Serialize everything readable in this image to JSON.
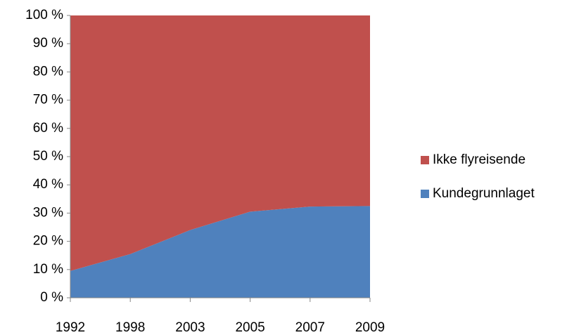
{
  "chart_data": {
    "type": "stacked-area",
    "categories": [
      "1992",
      "1998",
      "2003",
      "2005",
      "2007",
      "2009"
    ],
    "series": [
      {
        "name": "Kundegrunnlaget",
        "color": "#4f81bd",
        "values": [
          9.5,
          15.5,
          24,
          30.5,
          32.3,
          32.5
        ]
      },
      {
        "name": "Ikke flyreisende",
        "color": "#c0504d",
        "values": [
          90.5,
          84.5,
          76,
          69.5,
          67.7,
          67.5
        ]
      }
    ],
    "ylim": [
      0,
      100
    ],
    "yticks": [
      {
        "value": 0,
        "label": "0 %"
      },
      {
        "value": 10,
        "label": "10 %"
      },
      {
        "value": 20,
        "label": "20 %"
      },
      {
        "value": 30,
        "label": "30 %"
      },
      {
        "value": 40,
        "label": "40 %"
      },
      {
        "value": 50,
        "label": "50 %"
      },
      {
        "value": 60,
        "label": "60 %"
      },
      {
        "value": 70,
        "label": "70 %"
      },
      {
        "value": 80,
        "label": "80 %"
      },
      {
        "value": 90,
        "label": "90 %"
      },
      {
        "value": 100,
        "label": "100 %"
      }
    ],
    "legend": "right"
  }
}
